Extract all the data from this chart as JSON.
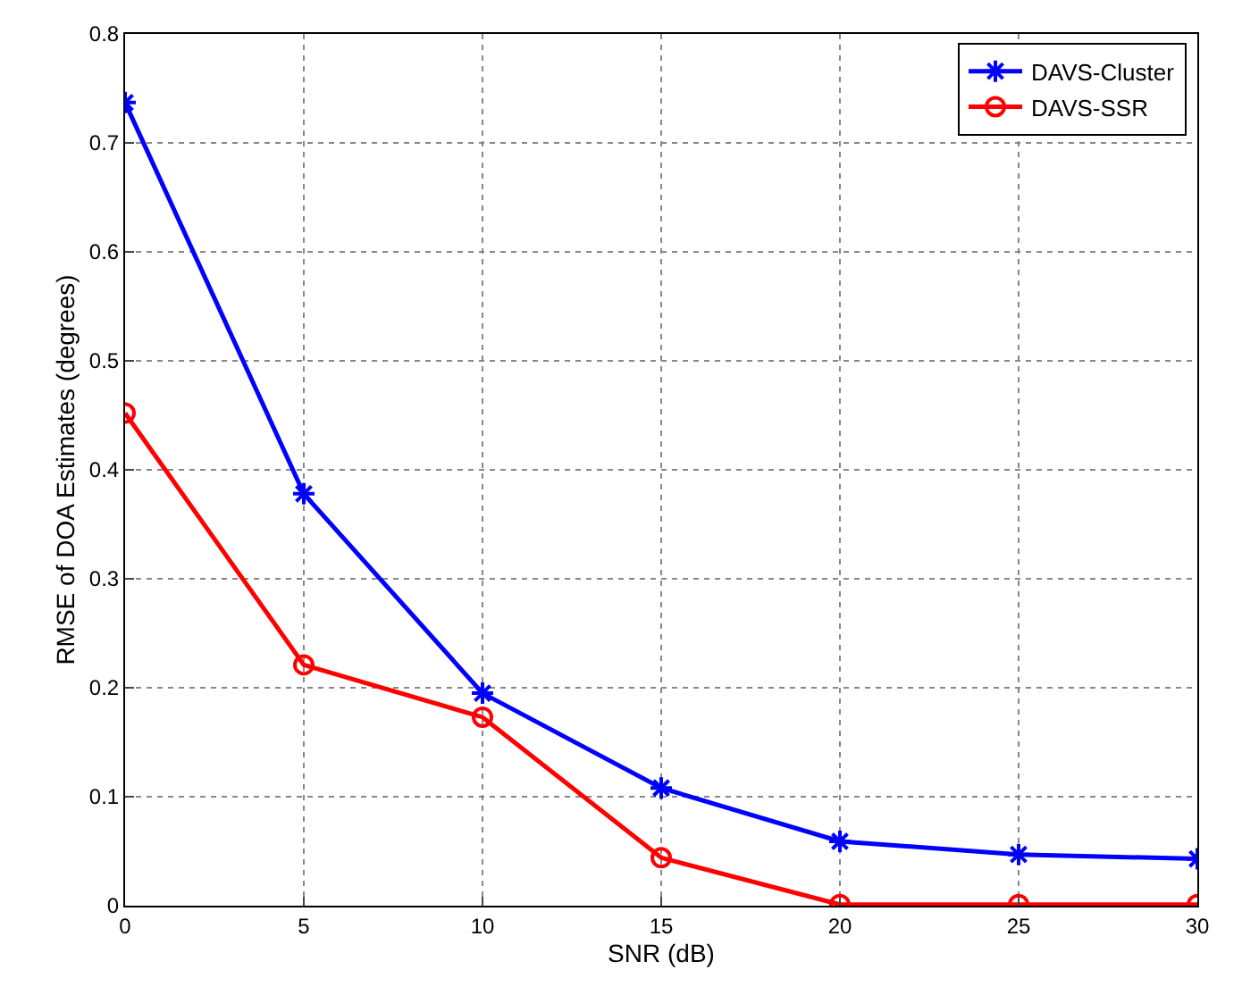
{
  "chart_data": {
    "type": "line",
    "xlabel": "SNR (dB)",
    "ylabel": "RMSE of DOA Estimates (degrees)",
    "x": [
      0,
      5,
      10,
      15,
      20,
      25,
      30
    ],
    "series": [
      {
        "name": "DAVS-Cluster",
        "color": "#0000ff",
        "marker": "cross",
        "values": [
          0.737,
          0.378,
          0.195,
          0.108,
          0.059,
          0.047,
          0.043
        ]
      },
      {
        "name": "DAVS-SSR",
        "color": "#ff0000",
        "marker": "circle",
        "values": [
          0.452,
          0.221,
          0.173,
          0.044,
          0.001,
          0.001,
          0.001
        ]
      }
    ],
    "xlim": [
      0,
      30
    ],
    "xticks": [
      0,
      5,
      10,
      15,
      20,
      25,
      30
    ],
    "ylim": [
      0,
      0.8
    ],
    "yticks": [
      0,
      0.1,
      0.2,
      0.3,
      0.4,
      0.5,
      0.6,
      0.7,
      0.8
    ],
    "grid": true,
    "legend": "top right",
    "line_style": "solid"
  }
}
